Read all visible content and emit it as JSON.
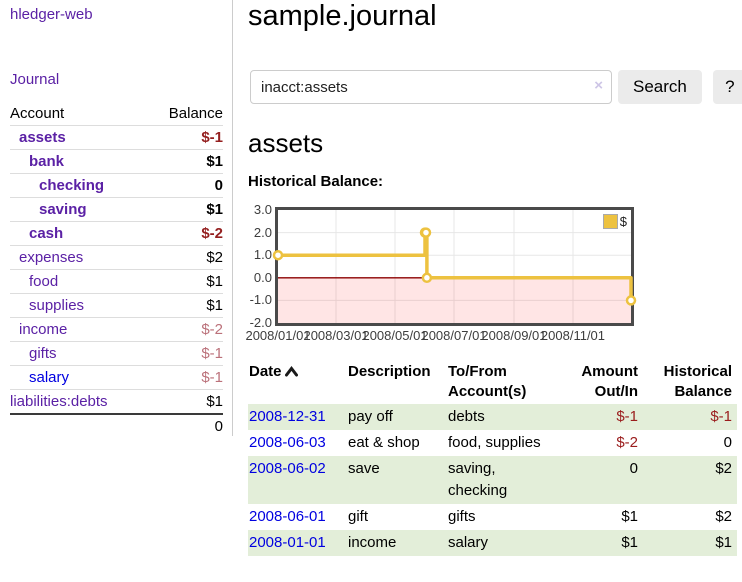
{
  "app": {
    "brand": "hledger-web"
  },
  "colors": {
    "link_purple": "#5b21a5",
    "link_blue": "#0000e0",
    "negative_strong": "#941f1f",
    "negative_soft": "#bb717a",
    "row_stripe_green": "#e3eed9",
    "series_yellow": "#edc240",
    "negative_region_pink": "rgba(255,0,0,0.10)",
    "zero_line_red": "#8b0000"
  },
  "sidebar": {
    "nav_journal": "Journal",
    "headers": {
      "account": "Account",
      "balance": "Balance"
    },
    "accounts": [
      {
        "name": "assets",
        "balance": "$-1"
      },
      {
        "name": "bank",
        "balance": "$1"
      },
      {
        "name": "checking",
        "balance": "0"
      },
      {
        "name": "saving",
        "balance": "$1"
      },
      {
        "name": "cash",
        "balance": "$-2"
      },
      {
        "name": "expenses",
        "balance": "$2"
      },
      {
        "name": "food",
        "balance": "$1"
      },
      {
        "name": "supplies",
        "balance": "$1"
      },
      {
        "name": "income",
        "balance": "$-2"
      },
      {
        "name": "gifts",
        "balance": "$-1"
      },
      {
        "name": "salary",
        "balance": "$-1"
      },
      {
        "name": "liabilities:debts",
        "balance": "$1"
      }
    ],
    "total": "0"
  },
  "header": {
    "title": "sample.journal",
    "search": {
      "query": "inacct:assets",
      "clear_icon": "×",
      "button": "Search",
      "help_button": "?"
    }
  },
  "main": {
    "account_heading": "assets",
    "chart_heading": "Historical Balance:"
  },
  "chart_data": {
    "type": "line",
    "step": true,
    "title": "Historical Balance:",
    "xlim": [
      "2008-01-01",
      "2008-12-31"
    ],
    "ylim": [
      -2,
      3
    ],
    "grid": true,
    "grid_color": "#e7e7e7",
    "zero_line_color": "#8b0000",
    "negative_region_color": "rgba(255,0,0,0.10)",
    "legend_position": "top-right",
    "series": [
      {
        "name": "$",
        "color": "#edc240",
        "points": [
          [
            "2008-01-01",
            1
          ],
          [
            "2008-06-01",
            2
          ],
          [
            "2008-06-02",
            2
          ],
          [
            "2008-06-03",
            0
          ],
          [
            "2008-12-31",
            -1
          ]
        ]
      }
    ],
    "xticks": [
      {
        "date": "2008-01-01",
        "label": "2008/01/01"
      },
      {
        "date": "2008-03-01",
        "label": "2008/03/01"
      },
      {
        "date": "2008-05-01",
        "label": "2008/05/01"
      },
      {
        "date": "2008-07-01",
        "label": "2008/07/01"
      },
      {
        "date": "2008-09-01",
        "label": "2008/09/01"
      },
      {
        "date": "2008-11-01",
        "label": "2008/11/01"
      }
    ],
    "yticks": [
      {
        "value": 3,
        "label": "3.0"
      },
      {
        "value": 2,
        "label": "2.0"
      },
      {
        "value": 1,
        "label": "1.0"
      },
      {
        "value": 0,
        "label": "0.0"
      },
      {
        "value": -1,
        "label": "-1.0"
      },
      {
        "value": -2,
        "label": "-2.0"
      }
    ]
  },
  "register": {
    "headers": {
      "date": "Date",
      "description": "Description",
      "accounts": "To/From Account(s)",
      "amount": "Amount Out/In",
      "balance": "Historical Balance"
    },
    "rows": [
      {
        "date": "2008-12-31",
        "description": "pay off",
        "accounts": "debts",
        "amount": "$-1",
        "balance": "$-1"
      },
      {
        "date": "2008-06-03",
        "description": "eat & shop",
        "accounts": "food, supplies",
        "amount": "$-2",
        "balance": "0"
      },
      {
        "date": "2008-06-02",
        "description": "save",
        "accounts": "saving, checking",
        "amount": "0",
        "balance": "$2"
      },
      {
        "date": "2008-06-01",
        "description": "gift",
        "accounts": "gifts",
        "amount": "$1",
        "balance": "$2"
      },
      {
        "date": "2008-01-01",
        "description": "income",
        "accounts": "salary",
        "amount": "$1",
        "balance": "$1"
      }
    ]
  }
}
